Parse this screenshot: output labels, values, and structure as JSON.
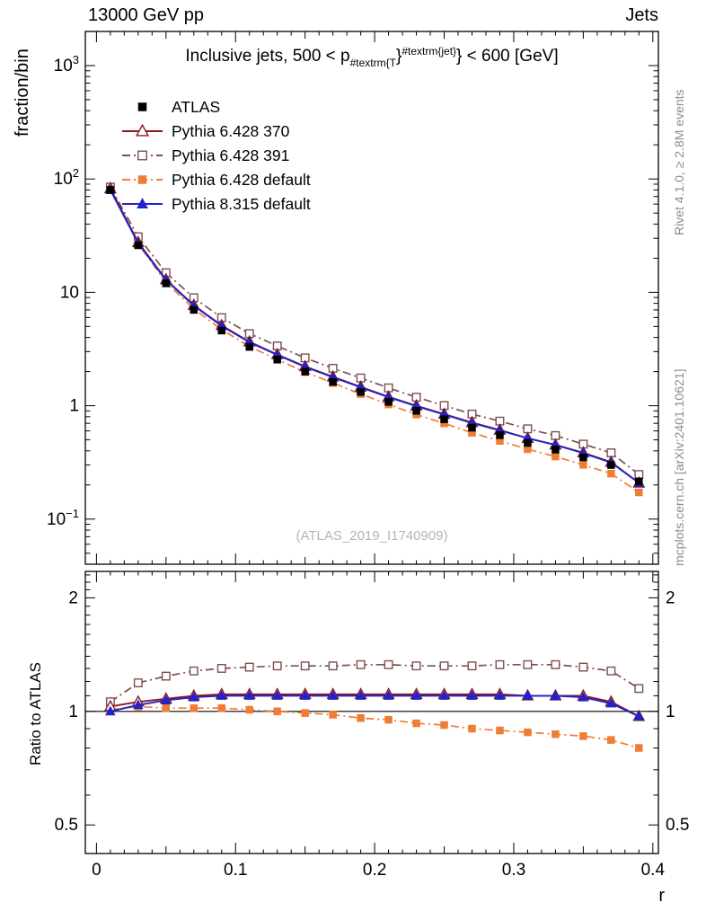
{
  "header": {
    "left": "13000 GeV pp",
    "right": "Jets"
  },
  "side_notes": {
    "top": "Rivet 4.1.0, ≥ 2.8M events",
    "bottom": "mcplots.cern.ch [arXiv:2401.10621]"
  },
  "main_panel": {
    "ylabel": "fraction/bin",
    "watermark": "(ATLAS_2019_I1740909)",
    "title": {
      "pre": "Inclusive jets, 500 < p",
      "sub": "#textrm{T",
      "mid": "}",
      "sup": "#textrm{jet}",
      "post": "} < 600 [GeV]"
    }
  },
  "ratio_panel": {
    "ylabel": "Ratio to ATLAS"
  },
  "x_axis": {
    "label": "r"
  },
  "chart_data": {
    "type": "line",
    "x": [
      0.01,
      0.03,
      0.05,
      0.07,
      0.09,
      0.11,
      0.13,
      0.15,
      0.17,
      0.19,
      0.21,
      0.23,
      0.25,
      0.27,
      0.29,
      0.31,
      0.33,
      0.35,
      0.37,
      0.39
    ],
    "x_range": [
      -0.008,
      0.404
    ],
    "xlabel": "r",
    "xticks": [
      {
        "v": 0.0,
        "label": "0"
      },
      {
        "v": 0.1,
        "label": "0.1"
      },
      {
        "v": 0.2,
        "label": "0.2"
      },
      {
        "v": 0.3,
        "label": "0.3"
      },
      {
        "v": 0.4,
        "label": "0.4"
      }
    ],
    "main": {
      "ylabel": "fraction/bin",
      "yscale": "log",
      "ylim": [
        0.04,
        2000
      ],
      "yticks": [
        {
          "v": 1000,
          "label": "10^3"
        },
        {
          "v": 100,
          "label": "10^2"
        },
        {
          "v": 10,
          "label": "10"
        },
        {
          "v": 1,
          "label": "1"
        },
        {
          "v": 0.1,
          "label": "10^−1"
        }
      ],
      "atlas": {
        "name": "ATLAS",
        "color": "#000000",
        "marker": "square-filled",
        "values": [
          80,
          26,
          12,
          7.0,
          4.6,
          3.3,
          2.55,
          2.0,
          1.62,
          1.32,
          1.08,
          0.9,
          0.76,
          0.64,
          0.55,
          0.47,
          0.41,
          0.35,
          0.3,
          0.215
        ]
      }
    },
    "ratio": {
      "ylabel": "Ratio to ATLAS",
      "yscale": "log",
      "ylim": [
        0.42,
        2.35
      ],
      "yticks": [
        {
          "v": 2,
          "label": "2"
        },
        {
          "v": 1,
          "label": "1"
        },
        {
          "v": 0.5,
          "label": "0.5"
        }
      ],
      "reference": 1.0
    },
    "series": [
      {
        "name": "Pythia 6.428 370",
        "color": "#8b1a1a",
        "marker": "triangle-open",
        "line": "solid",
        "ratio": [
          1.03,
          1.06,
          1.08,
          1.1,
          1.11,
          1.11,
          1.11,
          1.11,
          1.11,
          1.11,
          1.11,
          1.11,
          1.11,
          1.11,
          1.11,
          1.1,
          1.1,
          1.1,
          1.06,
          0.97
        ]
      },
      {
        "name": "Pythia 6.428 391",
        "color": "#7d4f4f",
        "marker": "square-open",
        "line": "dashdot",
        "ratio": [
          1.06,
          1.19,
          1.24,
          1.28,
          1.3,
          1.31,
          1.32,
          1.32,
          1.32,
          1.33,
          1.33,
          1.32,
          1.32,
          1.32,
          1.33,
          1.33,
          1.33,
          1.31,
          1.28,
          1.15
        ]
      },
      {
        "name": "Pythia 6.428 default",
        "color": "#ef7d33",
        "marker": "square-filled",
        "line": "dashdot",
        "ratio": [
          1.01,
          1.03,
          1.02,
          1.02,
          1.02,
          1.01,
          1.0,
          0.99,
          0.98,
          0.96,
          0.95,
          0.93,
          0.92,
          0.9,
          0.89,
          0.88,
          0.87,
          0.86,
          0.84,
          0.8
        ]
      },
      {
        "name": "Pythia 8.315 default",
        "color": "#2222cc",
        "marker": "triangle-filled",
        "line": "solid",
        "ratio": [
          1.0,
          1.04,
          1.07,
          1.09,
          1.1,
          1.1,
          1.1,
          1.1,
          1.1,
          1.1,
          1.1,
          1.1,
          1.1,
          1.1,
          1.1,
          1.1,
          1.1,
          1.09,
          1.05,
          0.97
        ]
      }
    ],
    "legend_position": "top-left",
    "grid": false
  }
}
